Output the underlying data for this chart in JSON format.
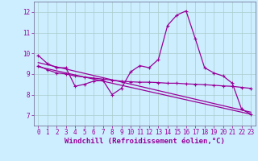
{
  "xlabel": "Windchill (Refroidissement éolien,°C)",
  "bg_color": "#cceeff",
  "line_color": "#990099",
  "xlim": [
    -0.5,
    23.5
  ],
  "ylim": [
    6.5,
    12.5
  ],
  "yticks": [
    7,
    8,
    9,
    10,
    11,
    12
  ],
  "xticks": [
    0,
    1,
    2,
    3,
    4,
    5,
    6,
    7,
    8,
    9,
    10,
    11,
    12,
    13,
    14,
    15,
    16,
    17,
    18,
    19,
    20,
    21,
    22,
    23
  ],
  "line1": {
    "x": [
      0,
      1,
      2,
      3,
      4,
      5,
      6,
      7,
      8,
      9,
      10,
      11,
      12,
      13,
      14,
      15,
      16,
      17,
      18,
      19,
      20,
      21,
      22,
      23
    ],
    "y": [
      9.9,
      9.5,
      9.3,
      9.3,
      8.4,
      8.5,
      8.65,
      8.7,
      8.0,
      8.3,
      9.1,
      9.4,
      9.3,
      9.7,
      11.35,
      11.85,
      12.05,
      10.7,
      9.3,
      9.05,
      8.9,
      8.55,
      7.3,
      7.05
    ]
  },
  "line2": {
    "x": [
      0,
      1,
      2,
      3,
      4,
      5,
      6,
      7,
      8,
      9,
      10,
      11,
      12,
      13,
      14,
      15,
      16,
      17,
      18,
      19,
      20,
      21,
      22,
      23
    ],
    "y": [
      9.4,
      9.2,
      9.05,
      9.0,
      8.9,
      8.85,
      8.8,
      8.75,
      8.7,
      8.65,
      8.62,
      8.6,
      8.6,
      8.58,
      8.55,
      8.55,
      8.52,
      8.5,
      8.48,
      8.45,
      8.42,
      8.4,
      8.35,
      8.3
    ]
  },
  "line3": {
    "x": [
      0,
      23
    ],
    "y": [
      9.55,
      7.15
    ]
  },
  "line4": {
    "x": [
      0,
      23
    ],
    "y": [
      9.35,
      7.05
    ]
  },
  "grid_color": "#aacccc",
  "tick_fontsize": 5.5,
  "xlabel_fontsize": 6.5,
  "lw": 0.9
}
